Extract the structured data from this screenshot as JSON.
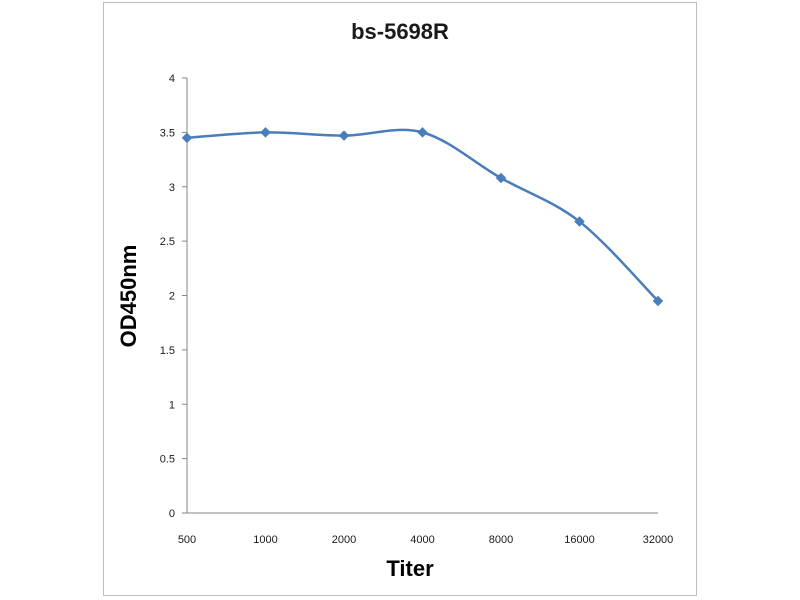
{
  "chart_data": {
    "type": "line",
    "title": "bs-5698R",
    "xlabel": "Titer",
    "ylabel": "OD450nm",
    "categories": [
      "500",
      "1000",
      "2000",
      "4000",
      "8000",
      "16000",
      "32000"
    ],
    "series": [
      {
        "values": [
          3.45,
          3.5,
          3.47,
          3.5,
          3.08,
          2.68,
          1.95
        ]
      }
    ],
    "ylim": [
      0,
      4
    ],
    "yticks": [
      "0",
      "0.5",
      "1",
      "1.5",
      "2",
      "2.5",
      "3",
      "3.5",
      "4"
    ],
    "grid": false,
    "line_color": "#4a7ebb",
    "marker": "diamond"
  }
}
